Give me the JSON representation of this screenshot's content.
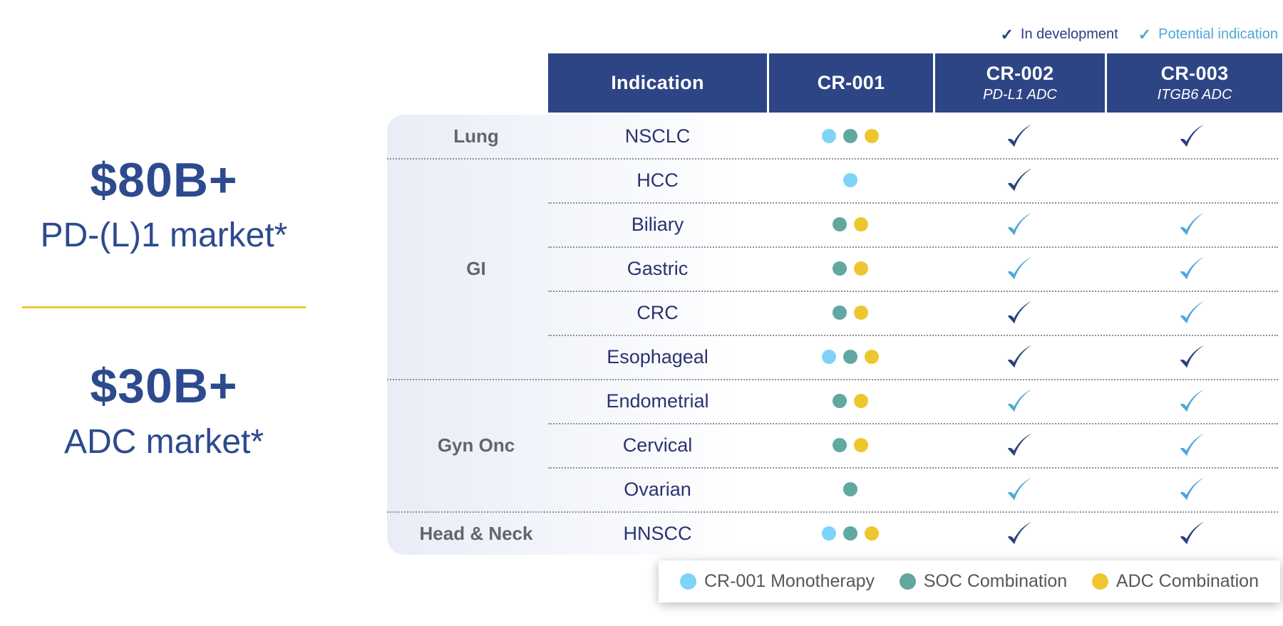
{
  "colors": {
    "header_navy": "#2e4585",
    "navy_text": "#2d4a8f",
    "accent_yellow": "#f2c230",
    "check_dev": "#27417f",
    "check_potential": "#4fa7d7"
  },
  "stats": [
    {
      "value": "$80B+",
      "label": "PD-(L)1 market*"
    },
    {
      "value": "$30B+",
      "label": "ADC market*"
    }
  ],
  "status_legend": [
    {
      "key": "dev",
      "check": "✓",
      "label": "In development",
      "color": "#27417f"
    },
    {
      "key": "potential",
      "check": "✓",
      "label": "Potential indication",
      "color": "#4fa7d7"
    }
  ],
  "table": {
    "columns": [
      {
        "title": "Indication",
        "subtitle": ""
      },
      {
        "title": "CR-001",
        "subtitle": ""
      },
      {
        "title": "CR-002",
        "subtitle": "PD-L1 ADC"
      },
      {
        "title": "CR-003",
        "subtitle": "ITGB6 ADC"
      }
    ],
    "groups": [
      {
        "label": "Lung",
        "rows": 1
      },
      {
        "label": "GI",
        "rows": 5
      },
      {
        "label": "Gyn Onc",
        "rows": 3
      },
      {
        "label": "Head & Neck",
        "rows": 1
      }
    ],
    "rows": [
      {
        "group": "Lung",
        "indication": "NSCLC",
        "cr001": [
          "mono",
          "soc",
          "adc"
        ],
        "cr002": "dev",
        "cr003": "dev"
      },
      {
        "group": "GI",
        "indication": "HCC",
        "cr001": [
          "mono"
        ],
        "cr002": "dev",
        "cr003": null
      },
      {
        "group": "GI",
        "indication": "Biliary",
        "cr001": [
          "soc",
          "adc"
        ],
        "cr002": "potential",
        "cr003": "potential"
      },
      {
        "group": "GI",
        "indication": "Gastric",
        "cr001": [
          "soc",
          "adc"
        ],
        "cr002": "potential",
        "cr003": "potential"
      },
      {
        "group": "GI",
        "indication": "CRC",
        "cr001": [
          "soc",
          "adc"
        ],
        "cr002": "dev",
        "cr003": "potential"
      },
      {
        "group": "GI",
        "indication": "Esophageal",
        "cr001": [
          "mono",
          "soc",
          "adc"
        ],
        "cr002": "dev",
        "cr003": "dev"
      },
      {
        "group": "Gyn Onc",
        "indication": "Endometrial",
        "cr001": [
          "soc",
          "adc"
        ],
        "cr002": "potential",
        "cr003": "potential"
      },
      {
        "group": "Gyn Onc",
        "indication": "Cervical",
        "cr001": [
          "soc",
          "adc"
        ],
        "cr002": "dev",
        "cr003": "potential"
      },
      {
        "group": "Gyn Onc",
        "indication": "Ovarian",
        "cr001": [
          "soc"
        ],
        "cr002": "potential",
        "cr003": "potential"
      },
      {
        "group": "Head & Neck",
        "indication": "HNSCC",
        "cr001": [
          "mono",
          "soc",
          "adc"
        ],
        "cr002": "dev",
        "cr003": "dev"
      }
    ]
  },
  "dot_legend": [
    {
      "key": "mono",
      "label": "CR-001 Monotherapy",
      "color": "#7dd4f8"
    },
    {
      "key": "soc",
      "label": "SOC Combination",
      "color": "#62a7a1"
    },
    {
      "key": "adc",
      "label": "ADC Combination",
      "color": "#eec72f"
    }
  ]
}
